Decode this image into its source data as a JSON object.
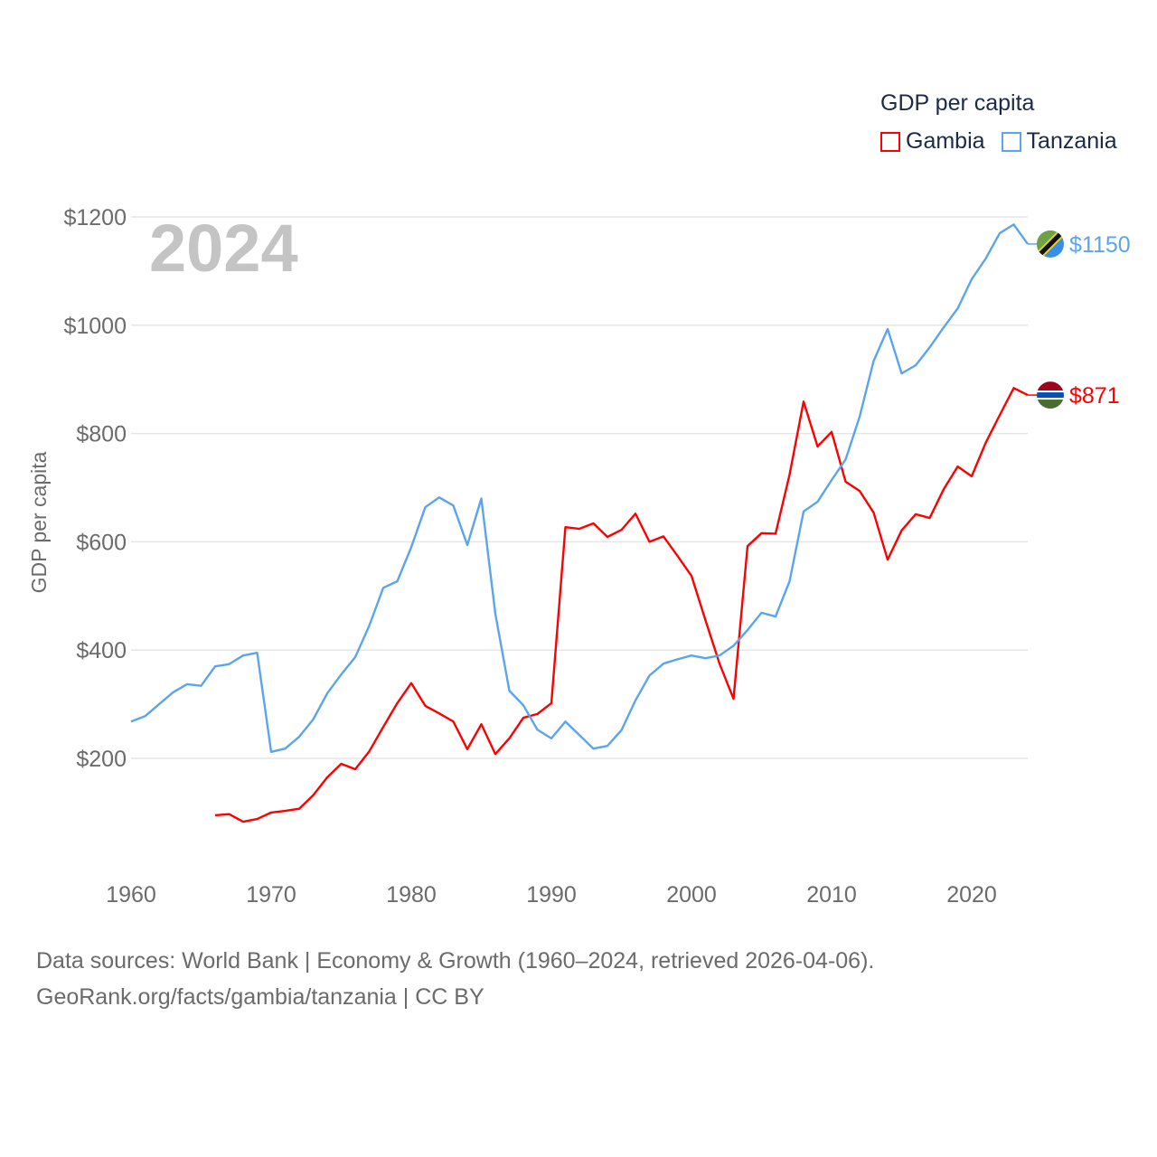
{
  "chart_data": {
    "type": "line",
    "title": "GDP per capita",
    "ylabel": "GDP per capita",
    "xlabel": "",
    "year_label": "2024",
    "ylim": [
      0,
      1200
    ],
    "xlim": [
      1960,
      2024
    ],
    "yticks": [
      200,
      400,
      600,
      800,
      1000,
      1200
    ],
    "ytick_labels": [
      "$200",
      "$400",
      "$600",
      "$800",
      "$1000",
      "$1200"
    ],
    "xticks": [
      1960,
      1970,
      1980,
      1990,
      2000,
      2010,
      2020
    ],
    "xtick_labels": [
      "1960",
      "1970",
      "1980",
      "1990",
      "2000",
      "2010",
      "2020"
    ],
    "grid": true,
    "legend_position": "top-right",
    "series": [
      {
        "name": "Gambia",
        "color": "#ff0000",
        "end_label": "$871",
        "flag": "gambia-flag",
        "start_year": 1966,
        "values": [
          95,
          97,
          83,
          88,
          100,
          103,
          107,
          132,
          165,
          190,
          180,
          213,
          258,
          302,
          339,
          297,
          283,
          268,
          217,
          263,
          208,
          237,
          275,
          282,
          302,
          627,
          624,
          634,
          609,
          622,
          652,
          600,
          610,
          574,
          537,
          455,
          375,
          310,
          592,
          616,
          615,
          724,
          859,
          776,
          803,
          711,
          694,
          654,
          567,
          621,
          651,
          644,
          697,
          739,
          721,
          783,
          834,
          884,
          871
        ]
      },
      {
        "name": "Tanzania",
        "color": "#5aa5ec",
        "end_label": "$1150",
        "flag": "tanzania-flag",
        "start_year": 1960,
        "values": [
          268,
          278,
          300,
          322,
          337,
          334,
          370,
          374,
          390,
          395,
          212,
          218,
          240,
          272,
          320,
          355,
          387,
          445,
          515,
          527,
          590,
          664,
          682,
          667,
          594,
          680,
          467,
          325,
          298,
          253,
          237,
          268,
          243,
          218,
          223,
          252,
          307,
          353,
          375,
          383,
          390,
          385,
          390,
          408,
          437,
          469,
          462,
          527,
          656,
          674,
          714,
          752,
          831,
          934,
          993,
          911,
          926,
          959,
          996,
          1031,
          1085,
          1123,
          1170,
          1186,
          1150
        ]
      }
    ]
  },
  "footer": {
    "line1": "Data sources: World Bank | Economy & Growth (1960–2024, retrieved 2026-04-06).",
    "line2": "GeoRank.org/facts/gambia/tanzania | CC BY"
  }
}
